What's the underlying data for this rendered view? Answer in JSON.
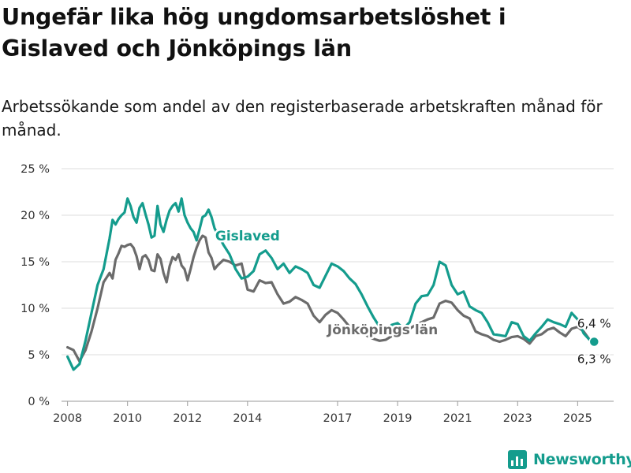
{
  "title": "Ungefär lika hög ungdomsarbetslöshet i Gislaved och Jönköpings län",
  "subtitle": "Arbetssökande som andel av den registerbaserade arbetskraften månad för månad.",
  "brand": {
    "name": "Newsworthy",
    "color": "#149c8d",
    "icon": "bar-chart-logo-icon"
  },
  "chart_data": {
    "type": "line",
    "xlim": [
      2007.8,
      2026.2
    ],
    "ylim": [
      0,
      25
    ],
    "x_ticks": [
      {
        "value": 2008,
        "label": "2008"
      },
      {
        "value": 2010,
        "label": "2010"
      },
      {
        "value": 2012,
        "label": "2012"
      },
      {
        "value": 2014,
        "label": "2014"
      },
      {
        "value": 2017,
        "label": "2017"
      },
      {
        "value": 2019,
        "label": "2019"
      },
      {
        "value": 2021,
        "label": "2021"
      },
      {
        "value": 2023,
        "label": "2023"
      },
      {
        "value": 2025,
        "label": "2025"
      }
    ],
    "y_ticks": [
      {
        "value": 0,
        "label": "0 %"
      },
      {
        "value": 5,
        "label": "5 %"
      },
      {
        "value": 10,
        "label": "10 %"
      },
      {
        "value": 15,
        "label": "15 %"
      },
      {
        "value": 20,
        "label": "20 %"
      },
      {
        "value": 25,
        "label": "25 %"
      }
    ],
    "grid": "horizontal",
    "series": [
      {
        "name": "Jönköpings län",
        "color": "#6b6b6b",
        "label_at": [
          2018.5,
          7.2
        ],
        "end_label": "6,3 %",
        "x": [
          2008.0,
          2008.2,
          2008.4,
          2008.6,
          2008.8,
          2009.0,
          2009.2,
          2009.4,
          2009.5,
          2009.6,
          2009.7,
          2009.8,
          2009.9,
          2010.0,
          2010.1,
          2010.2,
          2010.3,
          2010.4,
          2010.5,
          2010.6,
          2010.7,
          2010.8,
          2010.9,
          2011.0,
          2011.1,
          2011.2,
          2011.3,
          2011.4,
          2011.5,
          2011.6,
          2011.7,
          2011.8,
          2011.9,
          2012.0,
          2012.1,
          2012.2,
          2012.3,
          2012.4,
          2012.5,
          2012.6,
          2012.7,
          2012.8,
          2012.9,
          2013.0,
          2013.2,
          2013.4,
          2013.6,
          2013.8,
          2014.0,
          2014.2,
          2014.4,
          2014.6,
          2014.8,
          2015.0,
          2015.2,
          2015.4,
          2015.6,
          2015.8,
          2016.0,
          2016.2,
          2016.4,
          2016.6,
          2016.8,
          2017.0,
          2017.2,
          2017.4,
          2017.6,
          2017.8,
          2018.0,
          2018.2,
          2018.4,
          2018.6,
          2018.8,
          2019.0,
          2019.2,
          2019.4,
          2019.6,
          2019.8,
          2020.0,
          2020.2,
          2020.4,
          2020.6,
          2020.8,
          2021.0,
          2021.2,
          2021.4,
          2021.6,
          2021.8,
          2022.0,
          2022.2,
          2022.4,
          2022.6,
          2022.8,
          2023.0,
          2023.2,
          2023.4,
          2023.6,
          2023.8,
          2024.0,
          2024.2,
          2024.4,
          2024.6,
          2024.8,
          2025.0,
          2025.2,
          2025.4,
          2025.55
        ],
        "y": [
          5.8,
          5.5,
          4.3,
          5.5,
          7.5,
          10.0,
          12.8,
          13.8,
          13.2,
          15.2,
          15.9,
          16.7,
          16.6,
          16.8,
          16.9,
          16.5,
          15.6,
          14.2,
          15.5,
          15.7,
          15.2,
          14.1,
          14.0,
          15.8,
          15.3,
          13.8,
          12.8,
          14.5,
          15.5,
          15.2,
          15.8,
          14.6,
          14.2,
          13.0,
          14.2,
          15.5,
          16.5,
          17.3,
          17.8,
          17.6,
          16.0,
          15.4,
          14.2,
          14.6,
          15.2,
          15.0,
          14.6,
          14.8,
          12.0,
          11.8,
          13.0,
          12.7,
          12.8,
          11.5,
          10.5,
          10.7,
          11.2,
          10.9,
          10.5,
          9.2,
          8.5,
          9.3,
          9.8,
          9.5,
          8.8,
          8.0,
          7.8,
          7.6,
          7.0,
          6.7,
          6.5,
          6.6,
          7.0,
          7.0,
          7.2,
          7.8,
          8.2,
          8.5,
          8.8,
          9.0,
          10.5,
          10.8,
          10.6,
          9.8,
          9.2,
          8.9,
          7.5,
          7.2,
          7.0,
          6.6,
          6.4,
          6.6,
          6.9,
          7.0,
          6.7,
          6.2,
          7.0,
          7.2,
          7.7,
          7.9,
          7.4,
          7.0,
          7.8,
          8.0,
          7.5,
          6.6,
          6.3
        ]
      },
      {
        "name": "Gislaved",
        "color": "#149c8d",
        "label_at": [
          2014.0,
          17.3
        ],
        "end_label": "6,4 %",
        "x": [
          2008.0,
          2008.2,
          2008.4,
          2008.6,
          2008.8,
          2009.0,
          2009.2,
          2009.4,
          2009.5,
          2009.6,
          2009.7,
          2009.8,
          2009.9,
          2010.0,
          2010.1,
          2010.2,
          2010.3,
          2010.4,
          2010.5,
          2010.6,
          2010.7,
          2010.8,
          2010.9,
          2011.0,
          2011.1,
          2011.2,
          2011.3,
          2011.4,
          2011.5,
          2011.6,
          2011.7,
          2011.8,
          2011.9,
          2012.0,
          2012.1,
          2012.2,
          2012.3,
          2012.4,
          2012.5,
          2012.6,
          2012.7,
          2012.8,
          2012.9,
          2013.0,
          2013.2,
          2013.4,
          2013.6,
          2013.8,
          2014.0,
          2014.2,
          2014.4,
          2014.6,
          2014.8,
          2015.0,
          2015.2,
          2015.4,
          2015.6,
          2015.8,
          2016.0,
          2016.2,
          2016.4,
          2016.6,
          2016.8,
          2017.0,
          2017.2,
          2017.4,
          2017.6,
          2017.8,
          2018.0,
          2018.2,
          2018.4,
          2018.6,
          2018.8,
          2019.0,
          2019.2,
          2019.4,
          2019.6,
          2019.8,
          2020.0,
          2020.2,
          2020.4,
          2020.6,
          2020.8,
          2021.0,
          2021.2,
          2021.4,
          2021.6,
          2021.8,
          2022.0,
          2022.2,
          2022.4,
          2022.6,
          2022.8,
          2023.0,
          2023.2,
          2023.4,
          2023.6,
          2023.8,
          2024.0,
          2024.2,
          2024.4,
          2024.6,
          2024.8,
          2025.0,
          2025.2,
          2025.4,
          2025.55
        ],
        "y": [
          4.8,
          3.4,
          4.0,
          6.5,
          9.5,
          12.5,
          14.2,
          17.5,
          19.5,
          19.0,
          19.6,
          20.0,
          20.3,
          21.8,
          21.0,
          19.8,
          19.2,
          20.8,
          21.3,
          20.1,
          19.0,
          17.6,
          17.8,
          21.0,
          19.0,
          18.2,
          19.5,
          20.5,
          21.0,
          21.3,
          20.4,
          21.8,
          20.0,
          19.2,
          18.6,
          18.2,
          17.3,
          18.5,
          19.8,
          20.0,
          20.6,
          19.8,
          18.6,
          18.0,
          16.8,
          15.8,
          14.2,
          13.2,
          13.4,
          14.0,
          15.8,
          16.2,
          15.4,
          14.2,
          14.8,
          13.8,
          14.5,
          14.2,
          13.8,
          12.5,
          12.2,
          13.5,
          14.8,
          14.5,
          14.0,
          13.2,
          12.6,
          11.5,
          10.2,
          9.0,
          8.0,
          7.5,
          8.2,
          8.4,
          7.8,
          8.5,
          10.5,
          11.3,
          11.4,
          12.5,
          15.0,
          14.6,
          12.5,
          11.5,
          11.8,
          10.2,
          9.8,
          9.5,
          8.5,
          7.2,
          7.1,
          7.0,
          8.5,
          8.3,
          7.0,
          6.5,
          7.3,
          8.0,
          8.8,
          8.5,
          8.3,
          8.0,
          9.5,
          8.8,
          7.3,
          6.6,
          6.4
        ]
      }
    ]
  }
}
